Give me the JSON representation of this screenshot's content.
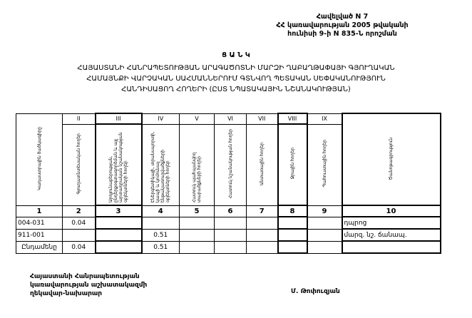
{
  "header": {
    "lines": [
      "Հավելված N 7",
      "ՀՀ կառավարության 2005 թվականի",
      "հունիսի 9-ի N 835-Ն որոշման"
    ]
  },
  "title": {
    "heading": "Ց Ա Ն Կ",
    "lines": [
      "ՀԱՅԱՍՏԱՆԻ ՀԱՆՐԱՊԵՏՈՒԹՅԱՆ ԱՐԱԳԱԾՈՏՆԻ ՄԱՐԶԻ ՂԱԲԱՂԹԱՓԱՅԻ ԳՅՈՒՂԱԿԱՆ",
      "ՀԱՄԱՅՆՔԻ ՎԱՐՉԱԿԱՆ ՍԱՀՄԱՆՆԵՐՈՒՄ  ԳՏՆՎՈՂ  ՊԵՏԱԿԱՆ ՍԵՓԱԿԱՆՈՒԹՅՈՒՆ",
      "ՀԱՆԴԻՍԱՑՈՂ ՀՈՂԵՐԻ   (ԸՍՏ ՆՊԱՏԱԿԱՅԻՆ ՆՇԱՆԱԿՈՒԹՅԱՆ)"
    ]
  },
  "table": {
    "roman": [
      "II",
      "III",
      "IV",
      "V",
      "VI",
      "VII",
      "VIII",
      "IX"
    ],
    "headers": [
      "Կադաստրային ծածկագիրը",
      "Գյուղատնտեսական հողեր",
      "Արդյունաբերության, ընդերքօգտագործման և այլ արտադրական նշանակության օբյեկտների հողեր",
      "Էներգետիկայի, տրանսպորտի, կապի և կոմունալ ենթակառուցվածքների օբյեկտների հողեր",
      "Հատուկ պահպանվող տարածքների հողեր",
      "Հատուկ նշանակության հողեր",
      "Անտառային հողեր",
      "Ջրային հողեր",
      "Պահուստային հողեր",
      "Ծանոթագրություն"
    ],
    "numbers": [
      "1",
      "2",
      "3",
      "4",
      "5",
      "6",
      "7",
      "8",
      "9",
      "10"
    ],
    "rows": [
      [
        "004-031",
        "0.04",
        "",
        "",
        "",
        "",
        "",
        "",
        "",
        "դպրոց"
      ],
      [
        "911-001",
        "",
        "",
        "0.51",
        "",
        "",
        "",
        "",
        "",
        "մարզ. նշ. ճանապ."
      ],
      [
        "Ընդամենը",
        "0.04",
        "",
        "0.51",
        "",
        "",
        "",
        "",
        "",
        ""
      ]
    ]
  },
  "footer": {
    "lines": [
      "Հայաստանի Հանրապետության",
      "կառավարության աշխատակազմի",
      "ղեկավար-նախարար"
    ],
    "signatory": "Մ. Թոփուզյան"
  }
}
